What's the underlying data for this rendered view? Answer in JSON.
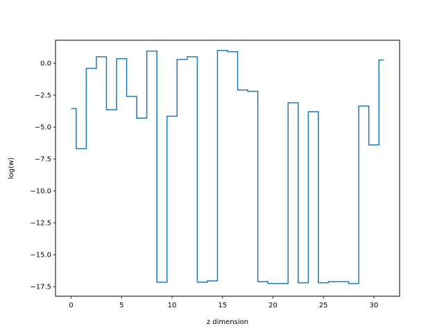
{
  "chart_data": {
    "type": "line",
    "drawstyle": "steps-mid",
    "title": "",
    "xlabel": "z dimension",
    "ylabel": "log(w)",
    "xlim": [
      -1.55,
      32.55
    ],
    "ylim": [
      -18.25,
      1.8
    ],
    "xticks": [
      0,
      5,
      10,
      15,
      20,
      25,
      30
    ],
    "xtick_labels": [
      "0",
      "5",
      "10",
      "15",
      "20",
      "25",
      "30"
    ],
    "yticks": [
      0,
      -2.5,
      -5,
      -7.5,
      -10,
      -12.5,
      -15,
      -17.5
    ],
    "ytick_labels": [
      "0.0",
      "−2.5",
      "−5.0",
      "−7.5",
      "−10.0",
      "−12.5",
      "−15.0",
      "−17.5"
    ],
    "grid": false,
    "legend": "none",
    "series": [
      {
        "color": "#1f77b4",
        "x": [
          0,
          1,
          2,
          3,
          4,
          5,
          6,
          7,
          8,
          9,
          10,
          11,
          12,
          13,
          14,
          15,
          16,
          17,
          18,
          19,
          20,
          21,
          22,
          23,
          24,
          25,
          26,
          27,
          28,
          29,
          30,
          31
        ],
        "y": [
          -3.55,
          -6.7,
          -0.4,
          0.5,
          -3.65,
          0.35,
          -2.6,
          -4.3,
          0.95,
          -17.15,
          -4.15,
          0.3,
          0.5,
          -17.15,
          -17.05,
          1.0,
          0.9,
          -2.1,
          -2.2,
          -17.1,
          -17.25,
          -17.25,
          -3.1,
          -17.2,
          -3.8,
          -17.2,
          -17.1,
          -17.1,
          -17.25,
          -3.35,
          -6.4,
          0.25
        ]
      }
    ]
  }
}
